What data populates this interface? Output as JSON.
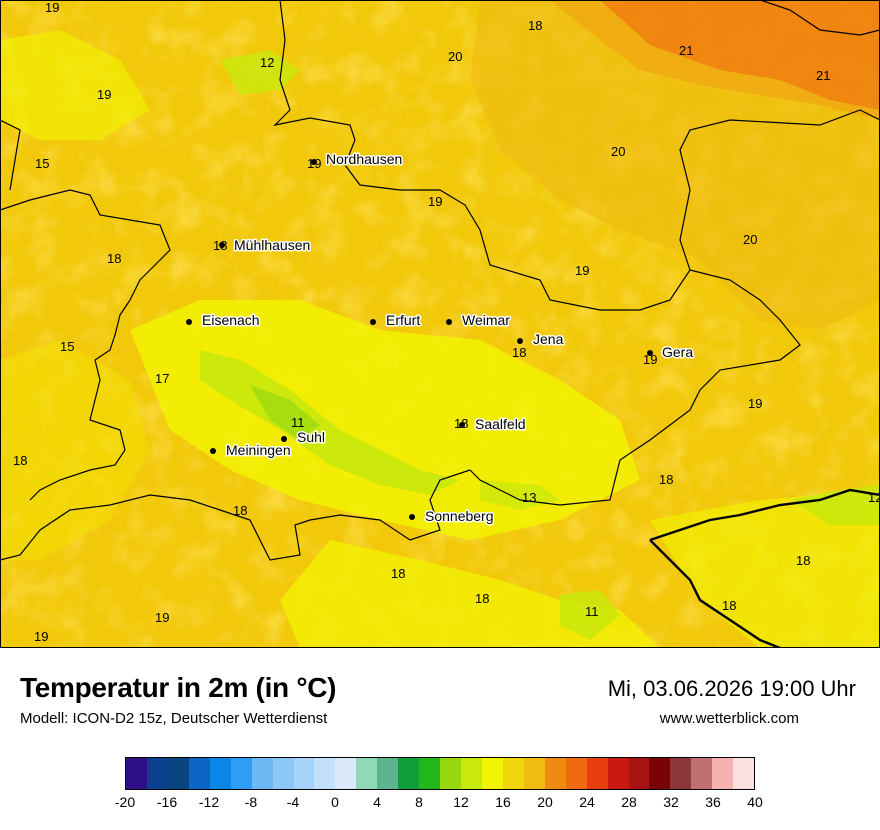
{
  "title": "Temperatur in 2m (in °C)",
  "subtitle": "Modell: ICON-D2 15z, Deutscher Wetterdienst",
  "datetime": "Mi, 03.06.2026 19:00 Uhr",
  "website": "www.wetterblick.com",
  "cities": [
    {
      "name": "Nordhausen"
    },
    {
      "name": "Mühlhausen"
    },
    {
      "name": "Eisenach"
    },
    {
      "name": "Erfurt"
    },
    {
      "name": "Weimar"
    },
    {
      "name": "Jena"
    },
    {
      "name": "Gera"
    },
    {
      "name": "Saalfeld"
    },
    {
      "name": "Suhl"
    },
    {
      "name": "Meiningen"
    },
    {
      "name": "Sonneberg"
    }
  ],
  "values": [
    "19",
    "18",
    "20",
    "21",
    "21",
    "12",
    "19",
    "15",
    "19",
    "20",
    "18",
    "19",
    "18",
    "20",
    "15",
    "17",
    "11",
    "19",
    "18",
    "18",
    "18",
    "13",
    "12",
    "18",
    "18",
    "18",
    "11",
    "19",
    "18",
    "19",
    "19",
    "19"
  ],
  "legend": {
    "colors": [
      "#2e0f86",
      "#0a3f8c",
      "#08447f",
      "#0a66c2",
      "#0a86e8",
      "#2f9cf5",
      "#6fb8f6",
      "#8cc7f8",
      "#a5d3f9",
      "#c3e0fb",
      "#dbeafb",
      "#8fd9b7",
      "#5cb58c",
      "#0e9e3a",
      "#21b61a",
      "#96d90f",
      "#c9e80c",
      "#f2f500",
      "#f0d60a",
      "#f0bc12",
      "#f08a10",
      "#f06a10",
      "#e63e0e",
      "#c81a12",
      "#a81414",
      "#7a0404",
      "#8c3838",
      "#c07070",
      "#f5b0b0",
      "#fde0e0"
    ],
    "ticks": [
      "-20",
      "-16",
      "-12",
      "-8",
      "-4",
      "0",
      "4",
      "8",
      "12",
      "16",
      "20",
      "24",
      "28",
      "32",
      "36",
      "40"
    ],
    "min": -20,
    "max": 40
  }
}
